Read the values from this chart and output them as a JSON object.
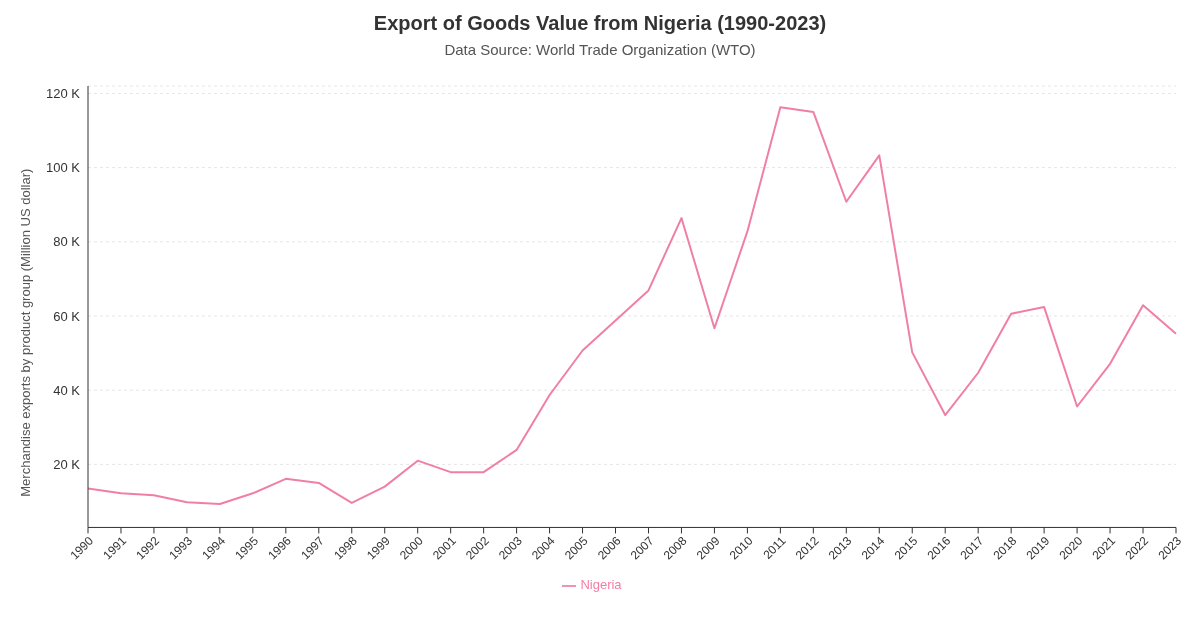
{
  "chart_data": {
    "type": "line",
    "title": "Export of Goods Value from Nigeria (1990-2023)",
    "subtitle": "Data Source: World Trade Organization (WTO)",
    "ylabel": "Merchandise exports by product group (Million US dollar)",
    "categories": [
      "1990",
      "1991",
      "1992",
      "1993",
      "1994",
      "1995",
      "1996",
      "1997",
      "1998",
      "1999",
      "2000",
      "2001",
      "2002",
      "2003",
      "2004",
      "2005",
      "2006",
      "2007",
      "2008",
      "2009",
      "2010",
      "2011",
      "2012",
      "2013",
      "2014",
      "2015",
      "2016",
      "2017",
      "2018",
      "2019",
      "2020",
      "2021",
      "2022",
      "2023"
    ],
    "series": [
      {
        "name": "Nigeria",
        "color": "#f07fa8",
        "values": [
          13500,
          12200,
          11700,
          9800,
          9300,
          12200,
          16100,
          15000,
          9600,
          14000,
          21000,
          17900,
          17900,
          23900,
          38700,
          50700,
          58800,
          66900,
          86400,
          56700,
          82800,
          116300,
          115000,
          90800,
          103300,
          50200,
          33300,
          44700,
          60600,
          62400,
          35600,
          47100,
          62900,
          55200
        ]
      }
    ],
    "ylim": [
      3000,
      122000
    ],
    "yticks": [
      {
        "value": 20000,
        "label": "20 K"
      },
      {
        "value": 40000,
        "label": "40 K"
      },
      {
        "value": 60000,
        "label": "60 K"
      },
      {
        "value": 80000,
        "label": "80 K"
      },
      {
        "value": 100000,
        "label": "100 K"
      },
      {
        "value": 120000,
        "label": "120 K"
      }
    ],
    "grid": "y",
    "legend": "bottom",
    "line_style": "solid"
  }
}
